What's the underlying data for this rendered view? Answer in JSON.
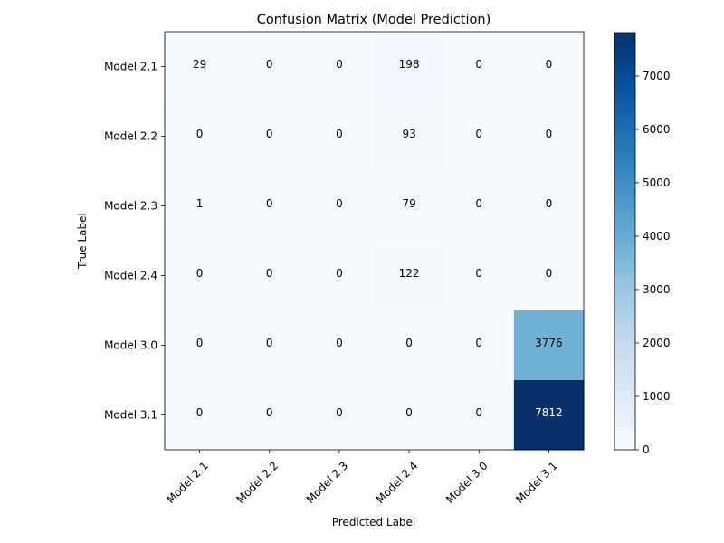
{
  "chart_data": {
    "type": "heatmap",
    "title": "Confusion Matrix (Model Prediction)",
    "xlabel": "Predicted Label",
    "ylabel": "True Label",
    "x_categories": [
      "Model 2.1",
      "Model 2.2",
      "Model 2.3",
      "Model 2.4",
      "Model 3.0",
      "Model 3.1"
    ],
    "y_categories": [
      "Model 2.1",
      "Model 2.2",
      "Model 2.3",
      "Model 2.4",
      "Model 3.0",
      "Model 3.1"
    ],
    "values": [
      [
        29,
        0,
        0,
        198,
        0,
        0
      ],
      [
        0,
        0,
        0,
        93,
        0,
        0
      ],
      [
        1,
        0,
        0,
        79,
        0,
        0
      ],
      [
        0,
        0,
        0,
        122,
        0,
        0
      ],
      [
        0,
        0,
        0,
        0,
        0,
        3776
      ],
      [
        0,
        0,
        0,
        0,
        0,
        7812
      ]
    ],
    "colormap": "Blues",
    "colorbar": {
      "min": 0,
      "max": 7812,
      "ticks": [
        0,
        1000,
        2000,
        3000,
        4000,
        5000,
        6000,
        7000
      ]
    },
    "text_colors": {
      "dark": "#000000",
      "light": "#ffffff"
    }
  }
}
